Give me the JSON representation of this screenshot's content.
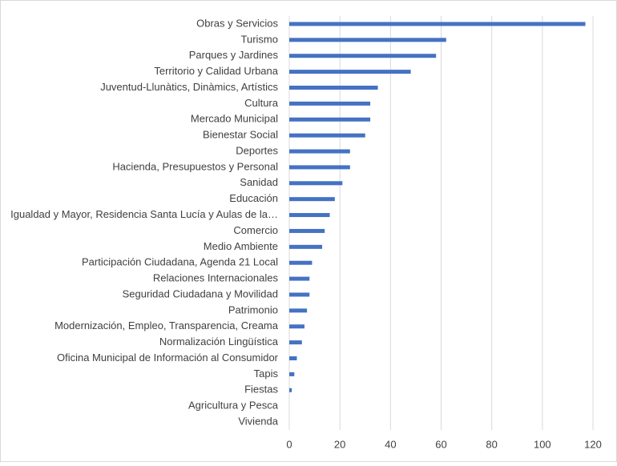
{
  "chart_data": {
    "type": "barh",
    "categories": [
      "Obras y Servicios",
      "Turismo",
      "Parques y Jardines",
      "Territorio y Calidad Urbana",
      "Juventud-Llunàtics, Dinàmics, Artístics",
      "Cultura",
      "Mercado Municipal",
      "Bienestar Social",
      "Deportes",
      "Hacienda, Presupuestos y Personal",
      "Sanidad",
      "Educación",
      "Igualdad y Mayor, Residencia Santa Lucía y Aulas de la…",
      "Comercio",
      "Medio Ambiente",
      "Participación Ciudadana, Agenda 21 Local",
      "Relaciones Internacionales",
      "Seguridad Ciudadana y Movilidad",
      "Patrimonio",
      "Modernización, Empleo, Transparencia, Creama",
      "Normalización Lingüística",
      "Oficina Municipal de Información al Consumidor",
      "Tapis",
      "Fiestas",
      "Agricultura y Pesca",
      "Vivienda"
    ],
    "values": [
      117,
      62,
      58,
      48,
      35,
      32,
      32,
      30,
      24,
      24,
      21,
      18,
      16,
      14,
      13,
      9,
      8,
      8,
      7,
      6,
      5,
      3,
      2,
      1,
      0,
      0
    ],
    "color": "#4472c4",
    "xlim": [
      0,
      120
    ],
    "xticks": [
      0,
      20,
      40,
      60,
      80,
      100,
      120
    ],
    "grid": true
  }
}
